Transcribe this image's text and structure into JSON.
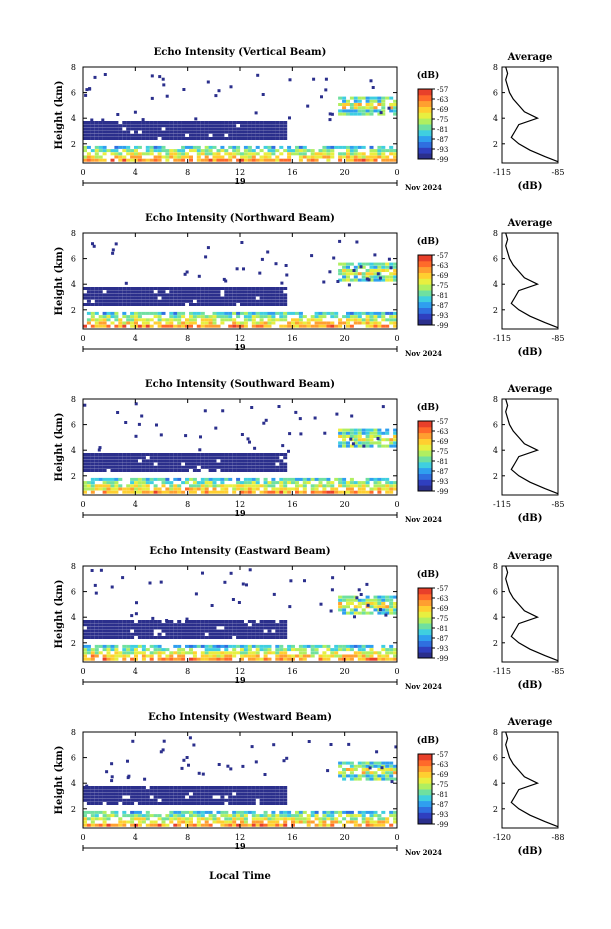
{
  "colorbar": {
    "unit": "(dB)",
    "ticks": [
      "-57",
      "-63",
      "-69",
      "-75",
      "-81",
      "-87",
      "-93",
      "-99"
    ],
    "colors": [
      "#2b2f8c",
      "#2f3fbf",
      "#2f6fe0",
      "#2f9fef",
      "#3fcfe0",
      "#6fe0a0",
      "#b0ef60",
      "#e8ef40",
      "#ffcf30",
      "#ff9f30",
      "#ff6a2a",
      "#e8402a"
    ]
  },
  "panels": [
    {
      "title": "Echo Intensity (Vertical Beam)",
      "ylabel": "Height (km)",
      "date": "Nov 2024",
      "day": "19",
      "avg_title": "Average",
      "avg_xlabel": "(dB)",
      "avg_xticks": [
        "-115",
        "-85"
      ]
    },
    {
      "title": "Echo Intensity (Northward Beam)",
      "ylabel": "Height (km)",
      "date": "Nov 2024",
      "day": "19",
      "avg_title": "Average",
      "avg_xlabel": "(dB)",
      "avg_xticks": [
        "-115",
        "-85"
      ]
    },
    {
      "title": "Echo Intensity (Southward Beam)",
      "ylabel": "Height (km)",
      "date": "Nov 2024",
      "day": "19",
      "avg_title": "Average",
      "avg_xlabel": "(dB)",
      "avg_xticks": [
        "-115",
        "-85"
      ]
    },
    {
      "title": "Echo Intensity (Eastward Beam)",
      "ylabel": "Height (km)",
      "date": "Nov 2024",
      "day": "19",
      "avg_title": "Average",
      "avg_xlabel": "(dB)",
      "avg_xticks": [
        "-115",
        "-85"
      ]
    },
    {
      "title": "Echo Intensity (Westward Beam)",
      "ylabel": "Height (km)",
      "date": "Nov 2024",
      "day": "19",
      "avg_title": "Average",
      "avg_xlabel": "(dB)",
      "avg_xticks": [
        "-120",
        "-88"
      ]
    }
  ],
  "x_axis_label": "Local Time",
  "chart_data": {
    "type": "heatmap",
    "x_ticks": [
      "0",
      "4",
      "8",
      "12",
      "16",
      "20",
      "0"
    ],
    "y_ticks": [
      "2",
      "4",
      "6",
      "8"
    ],
    "x_range_hours": [
      0,
      24
    ],
    "y_range_km": [
      0.5,
      8
    ],
    "colorbar_range_db": [
      -99,
      -57
    ],
    "echo_regions": [
      {
        "label": "layer",
        "x_from": 0,
        "x_to": 15.5,
        "y_from": 2.3,
        "y_to": 3.6,
        "db": -99
      },
      {
        "label": "near-surface",
        "x_from": 0,
        "x_to": 24,
        "y_from": 0.6,
        "y_to": 1.8,
        "db": -87
      },
      {
        "label": "upper cloud",
        "x_from": 19.5,
        "x_to": 24,
        "y_from": 4.2,
        "y_to": 5.6,
        "db": -81
      }
    ],
    "average_profile": {
      "x_label": "(dB)",
      "y_range_km": [
        0.5,
        8
      ],
      "x_range_db": [
        -115,
        -85
      ],
      "points": [
        {
          "height": 0.6,
          "db": -85
        },
        {
          "height": 1.0,
          "db": -92
        },
        {
          "height": 1.5,
          "db": -100
        },
        {
          "height": 2.0,
          "db": -106
        },
        {
          "height": 2.5,
          "db": -110
        },
        {
          "height": 3.0,
          "db": -108
        },
        {
          "height": 3.5,
          "db": -106
        },
        {
          "height": 4.0,
          "db": -96
        },
        {
          "height": 4.5,
          "db": -103
        },
        {
          "height": 5.0,
          "db": -106
        },
        {
          "height": 5.5,
          "db": -109
        },
        {
          "height": 6.0,
          "db": -111
        },
        {
          "height": 6.5,
          "db": -112
        },
        {
          "height": 7.0,
          "db": -113
        },
        {
          "height": 7.5,
          "db": -112
        },
        {
          "height": 8.0,
          "db": -113
        }
      ]
    }
  }
}
